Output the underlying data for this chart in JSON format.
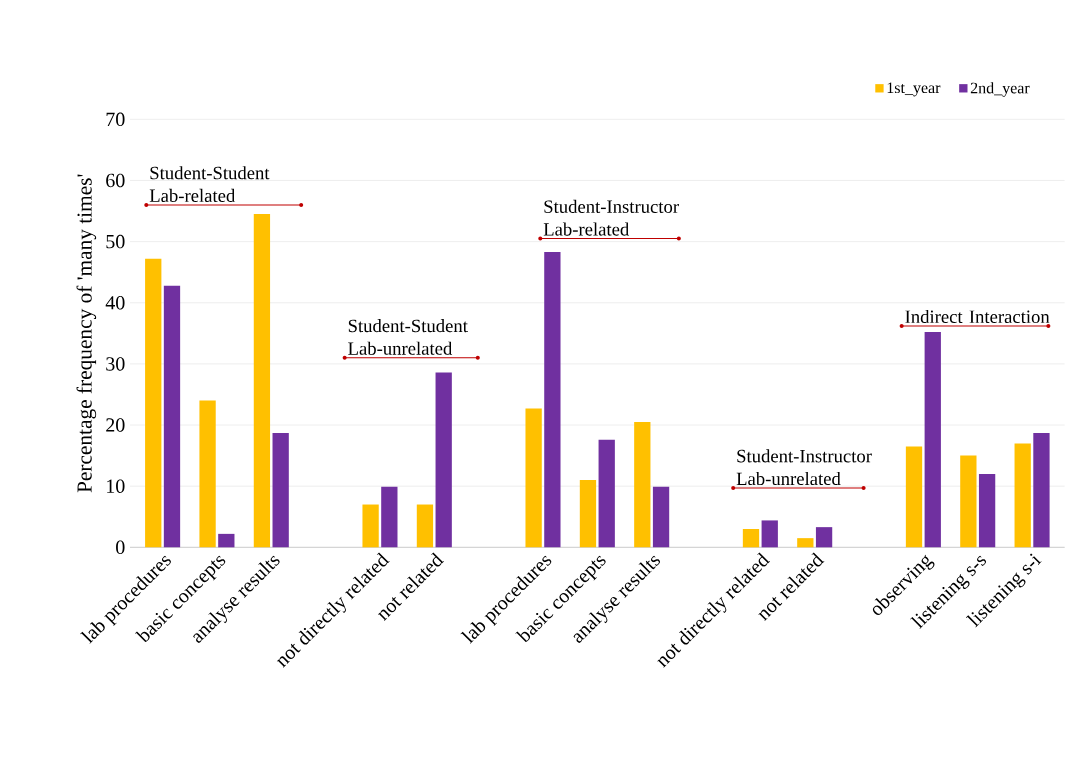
{
  "chart_data": {
    "type": "bar",
    "ylabel": "Percentage frequency of 'many times'",
    "categories": [
      "lab procedures",
      "basic concepts",
      "analyse results",
      null,
      "not directly related",
      "not related",
      null,
      "lab procedures",
      "basic concepts",
      "analyse results",
      null,
      "not directly related",
      "not related",
      null,
      "observing",
      "listening s-s",
      "listening s-i"
    ],
    "series": [
      {
        "name": "1st_year",
        "color": "#ffc000",
        "values": [
          47.2,
          24.0,
          54.5,
          null,
          7.0,
          7.0,
          null,
          22.7,
          11.0,
          20.5,
          null,
          3.0,
          1.5,
          null,
          16.5,
          15.0,
          17.0
        ]
      },
      {
        "name": "2nd_year",
        "color": "#7030a0",
        "values": [
          42.8,
          2.2,
          18.7,
          null,
          9.9,
          28.6,
          null,
          48.3,
          17.6,
          9.9,
          null,
          4.4,
          3.3,
          null,
          35.2,
          12.0,
          18.7
        ]
      }
    ],
    "ylim": [
      0,
      70
    ],
    "yticks": [
      0,
      10,
      20,
      30,
      40,
      50,
      60,
      70
    ],
    "grid": "y",
    "legend": "top right",
    "annotations": [
      "Student-Student Lab-related",
      "Student-Student Lab-unrelated",
      "Student-Instructor Lab-related",
      "Student-Instructor Lab-unrelated",
      "Indirect Interaction"
    ]
  }
}
